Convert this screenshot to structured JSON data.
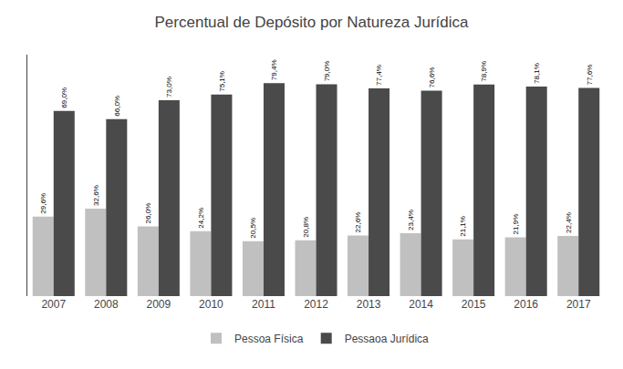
{
  "chart_data": {
    "type": "bar",
    "title": "Percentual de Depósito por Natureza Jurídica",
    "categories": [
      "2007",
      "2008",
      "2009",
      "2010",
      "2011",
      "2012",
      "2013",
      "2014",
      "2015",
      "2016",
      "2017"
    ],
    "series": [
      {
        "name": "Pessoa Física",
        "color": "#c0c0c0",
        "values": [
          29.6,
          32.6,
          26.0,
          24.2,
          20.5,
          20.8,
          22.6,
          23.4,
          21.1,
          21.9,
          22.4
        ],
        "value_labels": [
          "29,6%",
          "32,6%",
          "26,0%",
          "24,2%",
          "20,5%",
          "20,8%",
          "22,6%",
          "23,4%",
          "21,1%",
          "21,9%",
          "22,4%"
        ]
      },
      {
        "name": "Pessaoa Jurídica",
        "color": "#4a4a4a",
        "values": [
          69.0,
          66.0,
          73.0,
          75.1,
          79.4,
          79.0,
          77.4,
          76.6,
          78.9,
          78.1,
          77.6
        ],
        "value_labels": [
          "69,0%",
          "66,0%",
          "73,0%",
          "75,1%",
          "79,4%",
          "79,0%",
          "77,4%",
          "76,6%",
          "78,9%",
          "78,1%",
          "77,6%"
        ]
      }
    ],
    "ylim": [
      0,
      90
    ],
    "grid": false,
    "legend": "bottom",
    "data_labels": true,
    "tick_labels": "x"
  }
}
